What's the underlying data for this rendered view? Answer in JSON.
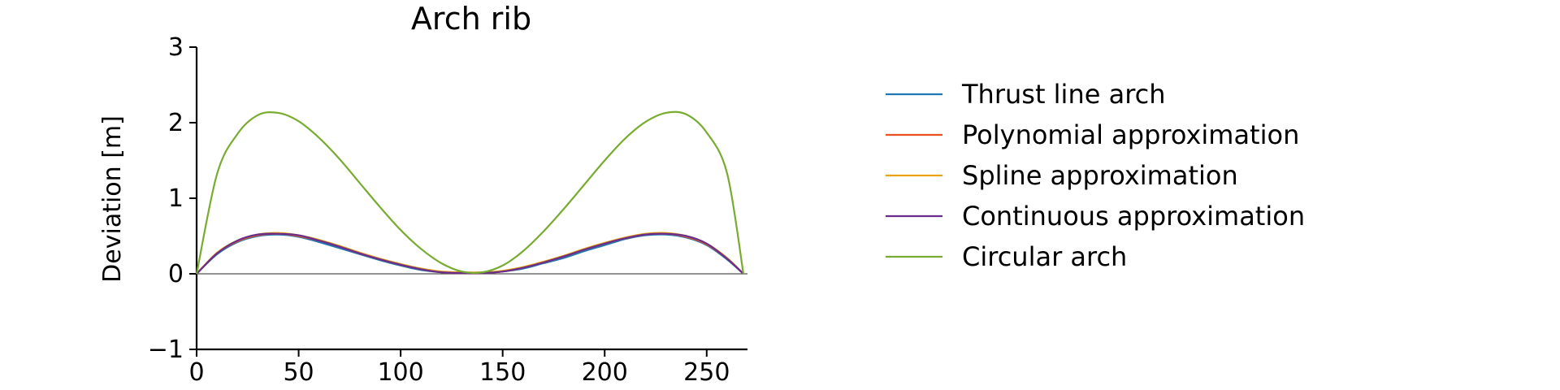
{
  "chart_data": {
    "type": "line",
    "title": "Arch rib",
    "xlabel": "",
    "ylabel": "Deviation [m]",
    "xlim": [
      0,
      270
    ],
    "ylim": [
      -1,
      3
    ],
    "xticks": [
      0,
      50,
      100,
      150,
      200,
      250
    ],
    "yticks": [
      -1,
      0,
      1,
      2,
      3
    ],
    "tick_labels_x": [
      "0",
      "50",
      "100",
      "150",
      "200",
      "250"
    ],
    "tick_labels_y": [
      "−1",
      "0",
      "1",
      "2",
      "3"
    ],
    "grid": false,
    "zero_line": true,
    "legend_placement": "outside-right",
    "x": [
      0,
      10,
      20,
      30,
      40,
      50,
      60,
      70,
      80,
      90,
      100,
      110,
      120,
      130,
      140,
      150,
      160,
      170,
      180,
      190,
      200,
      210,
      220,
      230,
      240,
      250,
      260,
      268
    ],
    "series": [
      {
        "name": "Thrust line arch",
        "color": "#1f77b4",
        "values": [
          0.0,
          0.26,
          0.42,
          0.5,
          0.52,
          0.49,
          0.42,
          0.34,
          0.26,
          0.18,
          0.11,
          0.05,
          0.02,
          0.01,
          0.01,
          0.03,
          0.07,
          0.14,
          0.21,
          0.3,
          0.38,
          0.46,
          0.51,
          0.52,
          0.48,
          0.38,
          0.19,
          0.0
        ]
      },
      {
        "name": "Polynomial approximation",
        "color": "#e8521f",
        "values": [
          0.0,
          0.27,
          0.43,
          0.51,
          0.53,
          0.5,
          0.44,
          0.36,
          0.27,
          0.19,
          0.12,
          0.06,
          0.02,
          0.01,
          0.01,
          0.03,
          0.08,
          0.15,
          0.23,
          0.32,
          0.4,
          0.47,
          0.52,
          0.53,
          0.49,
          0.39,
          0.2,
          0.0
        ]
      },
      {
        "name": "Spline approximation",
        "color": "#e8a317",
        "values": [
          0.0,
          0.28,
          0.44,
          0.52,
          0.54,
          0.51,
          0.45,
          0.37,
          0.28,
          0.2,
          0.13,
          0.07,
          0.03,
          0.02,
          0.02,
          0.04,
          0.09,
          0.16,
          0.24,
          0.33,
          0.41,
          0.48,
          0.53,
          0.54,
          0.5,
          0.4,
          0.21,
          0.0
        ]
      },
      {
        "name": "Continuous approximation",
        "color": "#6a2d8c",
        "values": [
          0.0,
          0.27,
          0.44,
          0.52,
          0.53,
          0.51,
          0.44,
          0.36,
          0.27,
          0.19,
          0.12,
          0.06,
          0.02,
          0.01,
          0.01,
          0.03,
          0.08,
          0.15,
          0.23,
          0.32,
          0.4,
          0.47,
          0.52,
          0.53,
          0.5,
          0.4,
          0.2,
          0.0
        ]
      },
      {
        "name": "Circular arch",
        "color": "#77ac30",
        "values": [
          0.0,
          1.32,
          1.85,
          2.1,
          2.13,
          2.02,
          1.8,
          1.52,
          1.2,
          0.88,
          0.58,
          0.33,
          0.14,
          0.03,
          0.02,
          0.11,
          0.3,
          0.56,
          0.86,
          1.18,
          1.5,
          1.79,
          2.01,
          2.13,
          2.11,
          1.87,
          1.33,
          0.0
        ]
      }
    ]
  }
}
